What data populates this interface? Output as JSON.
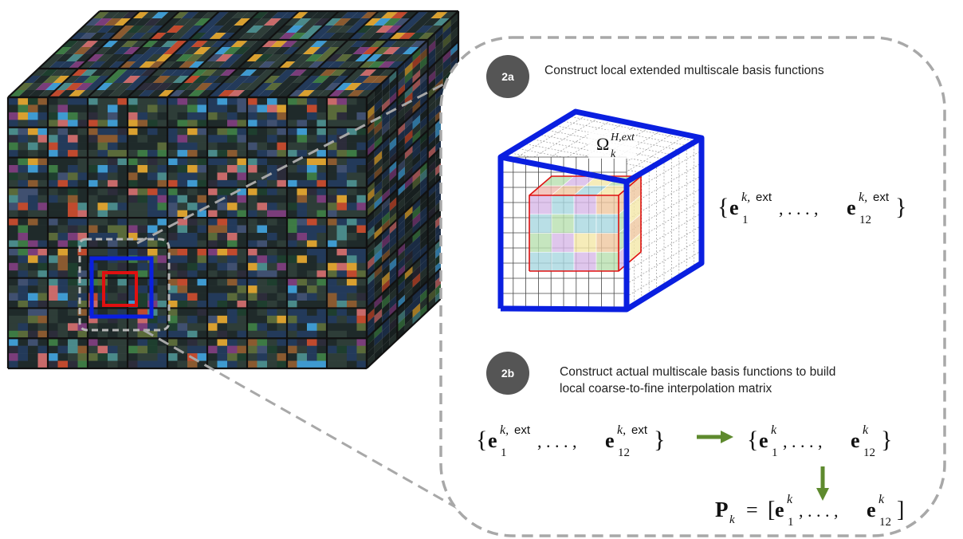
{
  "steps": [
    {
      "badge": "2a",
      "text": "Construct local extended multiscale basis functions"
    },
    {
      "badge": "2b",
      "line1": "Construct actual multiscale basis functions to build",
      "line2": "local coarse-to-fine interpolation matrix"
    }
  ],
  "math": {
    "omega_base": "Ω",
    "omega_sup": "H,ext",
    "omega_sub": "k",
    "set_ext": {
      "open": "{",
      "e": "e",
      "sup": "k,",
      "ext": "ext",
      "first_sub": "1",
      "dots": ", . . . ,",
      "last_sub": "12",
      "close": "}"
    },
    "set_actual": {
      "open": "{",
      "e": "e",
      "sup": "k",
      "first_sub": "1",
      "dots": ", . . . ,",
      "last_sub": "12",
      "close": "}"
    },
    "p_matrix": {
      "P": "P",
      "P_sub": "k",
      "eq": "=",
      "open": "[",
      "e": "e",
      "sup": "k",
      "first_sub": "1",
      "dots": ", . . . ,",
      "last_sub": "12",
      "close": "]"
    }
  },
  "colors": {
    "accent_blue": "#0a1fe0",
    "accent_red": "#e01010",
    "arrow_green": "#5e8a2e",
    "badge_gray": "#555555",
    "dashed_gray": "#a8a8a8",
    "grid_dark": "#111111",
    "cell_palette": [
      "#1f2a2a",
      "#2e3d38",
      "#233a5a",
      "#3d7a44",
      "#c04a2e",
      "#d9a030",
      "#3f9ad0",
      "#7a3d7a",
      "#4a8a8a",
      "#2c2c3a",
      "#5a6a3a",
      "#c86a6a",
      "#1e3e2e",
      "#405070",
      "#8a5a30"
    ],
    "subcube_palette": [
      "#f2b9b0",
      "#b8e0b0",
      "#b8c8f0",
      "#f5e8a8",
      "#d8b8e8",
      "#f0c8a0",
      "#a8d8e0"
    ]
  }
}
